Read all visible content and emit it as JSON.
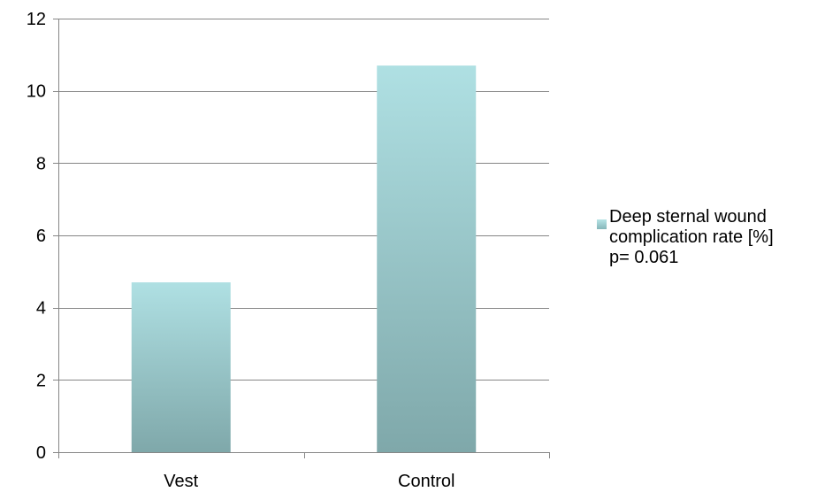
{
  "chart_data": {
    "type": "bar",
    "categories": [
      "Vest",
      "Control"
    ],
    "series": [
      {
        "name": "Deep sternal wound complication rate [%] p= 0.061",
        "values": [
          4.7,
          10.7
        ]
      }
    ],
    "ylim": [
      0,
      12
    ],
    "yticks": [
      0,
      2,
      4,
      6,
      8,
      10,
      12
    ],
    "grid": true,
    "legend_position": "right",
    "legend_lines": [
      "Deep sternal wound",
      "complication rate [%]",
      "p= 0.061"
    ],
    "colors": {
      "bar_top": "#afe0e3",
      "bar_bottom": "#7fa8aa",
      "legend_top": "#b7e4e6",
      "legend_bottom": "#85b6b9",
      "grid": "#868686",
      "axis": "#868686"
    }
  }
}
